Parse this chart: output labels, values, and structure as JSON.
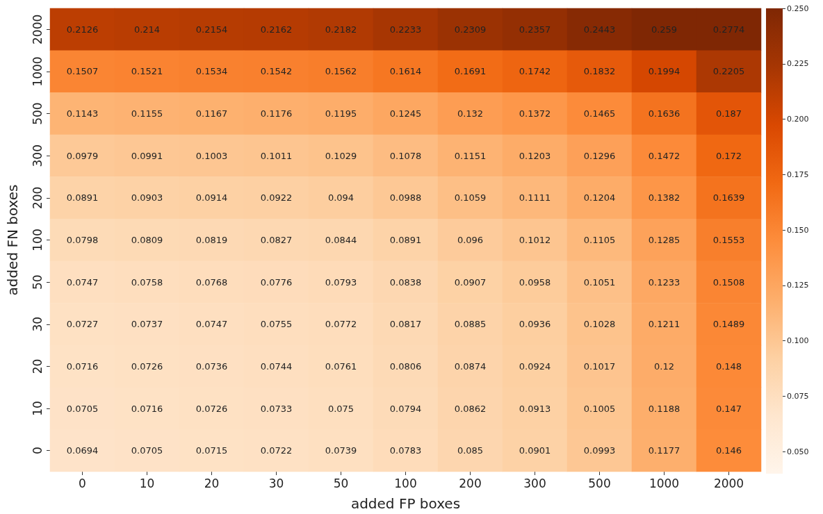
{
  "chart_data": {
    "type": "heatmap",
    "xlabel": "added FP boxes",
    "ylabel": "added FN boxes",
    "categories": [
      "0",
      "10",
      "20",
      "30",
      "50",
      "100",
      "200",
      "300",
      "500",
      "1000",
      "2000"
    ],
    "y_categories": [
      "2000",
      "1000",
      "500",
      "300",
      "200",
      "100",
      "50",
      "30",
      "20",
      "10",
      "0"
    ],
    "cells": [
      [
        0.2126,
        0.214,
        0.2154,
        0.2162,
        0.2182,
        0.2233,
        0.2309,
        0.2357,
        0.2443,
        0.259,
        0.2774
      ],
      [
        0.1507,
        0.1521,
        0.1534,
        0.1542,
        0.1562,
        0.1614,
        0.1691,
        0.1742,
        0.1832,
        0.1994,
        0.2205
      ],
      [
        0.1143,
        0.1155,
        0.1167,
        0.1176,
        0.1195,
        0.1245,
        0.132,
        0.1372,
        0.1465,
        0.1636,
        0.187
      ],
      [
        0.0979,
        0.0991,
        0.1003,
        0.1011,
        0.1029,
        0.1078,
        0.1151,
        0.1203,
        0.1296,
        0.1472,
        0.172
      ],
      [
        0.0891,
        0.0903,
        0.0914,
        0.0922,
        0.094,
        0.0988,
        0.1059,
        0.1111,
        0.1204,
        0.1382,
        0.1639
      ],
      [
        0.0798,
        0.0809,
        0.0819,
        0.0827,
        0.0844,
        0.0891,
        0.096,
        0.1012,
        0.1105,
        0.1285,
        0.1553
      ],
      [
        0.0747,
        0.0758,
        0.0768,
        0.0776,
        0.0793,
        0.0838,
        0.0907,
        0.0958,
        0.1051,
        0.1233,
        0.1508
      ],
      [
        0.0727,
        0.0737,
        0.0747,
        0.0755,
        0.0772,
        0.0817,
        0.0885,
        0.0936,
        0.1028,
        0.1211,
        0.1489
      ],
      [
        0.0716,
        0.0726,
        0.0736,
        0.0744,
        0.0761,
        0.0806,
        0.0874,
        0.0924,
        0.1017,
        0.12,
        0.148
      ],
      [
        0.0705,
        0.0716,
        0.0726,
        0.0733,
        0.075,
        0.0794,
        0.0862,
        0.0913,
        0.1005,
        0.1188,
        0.147
      ],
      [
        0.0694,
        0.0705,
        0.0715,
        0.0722,
        0.0739,
        0.0783,
        0.085,
        0.0901,
        0.0993,
        0.1177,
        0.146
      ]
    ],
    "clim": [
      0.04,
      0.25
    ],
    "cticks": [
      {
        "value": 0.05,
        "label": "0.050"
      },
      {
        "value": 0.075,
        "label": "0.075"
      },
      {
        "value": 0.1,
        "label": "0.100"
      },
      {
        "value": 0.125,
        "label": "0.125"
      },
      {
        "value": 0.15,
        "label": "0.150"
      },
      {
        "value": 0.175,
        "label": "0.175"
      },
      {
        "value": 0.2,
        "label": "0.200"
      },
      {
        "value": 0.225,
        "label": "0.225"
      },
      {
        "value": 0.25,
        "label": "0.250"
      }
    ],
    "data_labels": true
  }
}
